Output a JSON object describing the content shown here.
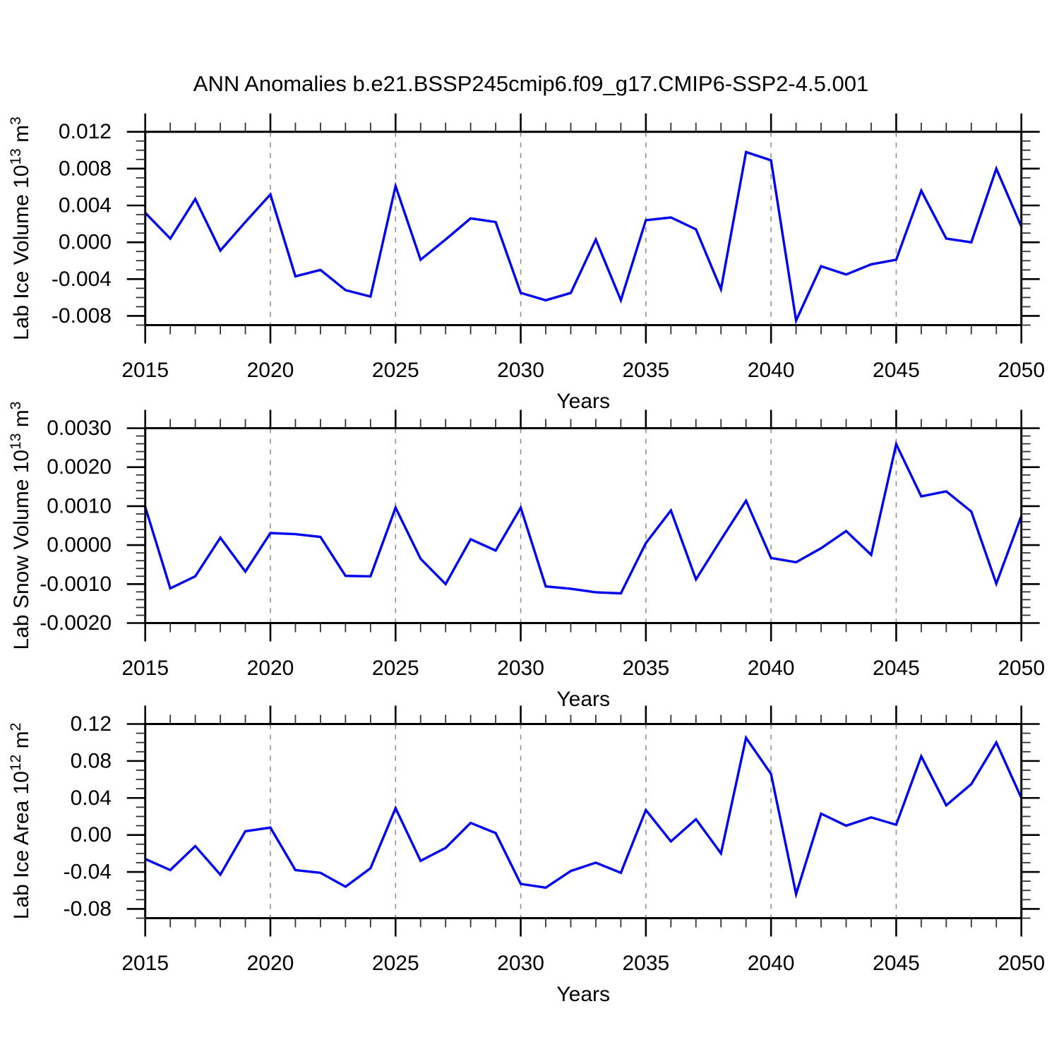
{
  "title": "ANN Anomalies b.e21.BSSP245cmip6.f09_g17.CMIP6-SSP2-4.5.001",
  "line_color": "#0000F0",
  "grid_color": "#909090",
  "axis_color": "#000000",
  "chart_data": [
    {
      "type": "line",
      "name": "lab-ice-volume",
      "ylabel_segments": [
        {
          "t": "Lab Ice Volume 10"
        },
        {
          "t": "13",
          "sup": true
        },
        {
          "t": " m"
        },
        {
          "t": "3",
          "sup": true
        }
      ],
      "xlabel": "Years",
      "x": [
        2015,
        2016,
        2017,
        2018,
        2019,
        2020,
        2021,
        2022,
        2023,
        2024,
        2025,
        2026,
        2027,
        2028,
        2029,
        2030,
        2031,
        2032,
        2033,
        2034,
        2035,
        2036,
        2037,
        2038,
        2039,
        2040,
        2041,
        2042,
        2043,
        2044,
        2045,
        2046,
        2047,
        2048,
        2049,
        2050
      ],
      "values": [
        0.0032,
        0.0004,
        0.0047,
        -0.0009,
        0.0022,
        0.0052,
        -0.0037,
        -0.003,
        -0.0052,
        -0.0059,
        0.0061,
        -0.0019,
        0.0003,
        0.0026,
        0.0022,
        -0.0055,
        -0.0063,
        -0.0055,
        0.0003,
        -0.0063,
        0.0024,
        0.0027,
        0.0014,
        -0.0051,
        0.0098,
        0.0089,
        -0.0085,
        -0.0026,
        -0.0035,
        -0.0024,
        -0.0019,
        0.0056,
        0.0004,
        0.0,
        0.008,
        0.0017
      ],
      "xlim": [
        2015,
        2050
      ],
      "ylim": [
        -0.009,
        0.012
      ],
      "xtick_major": [
        2015,
        2020,
        2025,
        2030,
        2035,
        2040,
        2045,
        2050
      ],
      "xtick_labels": [
        "2015",
        "2020",
        "2025",
        "2030",
        "2035",
        "2040",
        "2045",
        "2050"
      ],
      "xtick_minor_step": 1,
      "ytick_values": [
        0.012,
        0.008,
        0.004,
        0.0,
        -0.004,
        -0.008
      ],
      "ytick_labels": [
        "0.012",
        "0.008",
        "0.004",
        "0.000",
        "-0.004",
        "-0.008"
      ],
      "ytick_minor_step": 0.001,
      "grid_x": [
        2020,
        2025,
        2030,
        2035,
        2040,
        2045
      ],
      "grid": "vertical-dashed",
      "legend": "none"
    },
    {
      "type": "line",
      "name": "lab-snow-volume",
      "ylabel_segments": [
        {
          "t": "Lab Snow Volume 10"
        },
        {
          "t": "13",
          "sup": true
        },
        {
          "t": " m"
        },
        {
          "t": "3",
          "sup": true
        }
      ],
      "xlabel": "Years",
      "x": [
        2015,
        2016,
        2017,
        2018,
        2019,
        2020,
        2021,
        2022,
        2023,
        2024,
        2025,
        2026,
        2027,
        2028,
        2029,
        2030,
        2031,
        2032,
        2033,
        2034,
        2035,
        2036,
        2037,
        2038,
        2039,
        2040,
        2041,
        2042,
        2043,
        2044,
        2045,
        2046,
        2047,
        2048,
        2049,
        2050
      ],
      "values": [
        0.00098,
        -0.00111,
        -0.0008,
        0.00019,
        -0.00068,
        0.00031,
        0.00028,
        0.00021,
        -0.00079,
        -0.0008,
        0.00096,
        -0.00035,
        -0.001,
        0.00015,
        -0.00014,
        0.00096,
        -0.00106,
        -0.00112,
        -0.00121,
        -0.00124,
        5e-05,
        0.00089,
        -0.00088,
        0.00014,
        0.00114,
        -0.00033,
        -0.00044,
        -8e-05,
        0.00036,
        -0.00025,
        0.00259,
        0.00125,
        0.00138,
        0.00086,
        -0.00099,
        0.00075
      ],
      "xlim": [
        2015,
        2050
      ],
      "ylim": [
        -0.002,
        0.003
      ],
      "xtick_major": [
        2015,
        2020,
        2025,
        2030,
        2035,
        2040,
        2045,
        2050
      ],
      "xtick_labels": [
        "2015",
        "2020",
        "2025",
        "2030",
        "2035",
        "2040",
        "2045",
        "2050"
      ],
      "xtick_minor_step": 1,
      "ytick_values": [
        0.003,
        0.002,
        0.001,
        0.0,
        -0.001,
        -0.002
      ],
      "ytick_labels": [
        "0.0030",
        "0.0020",
        "0.0010",
        "0.0000",
        "-0.0010",
        "-0.0020"
      ],
      "ytick_minor_step": 0.0002,
      "grid_x": [
        2020,
        2025,
        2030,
        2035,
        2040,
        2045
      ],
      "grid": "vertical-dashed",
      "legend": "none"
    },
    {
      "type": "line",
      "name": "lab-ice-area",
      "ylabel_segments": [
        {
          "t": "Lab Ice Area 10"
        },
        {
          "t": "12",
          "sup": true
        },
        {
          "t": " m"
        },
        {
          "t": "2",
          "sup": true
        }
      ],
      "xlabel": "Years",
      "x": [
        2015,
        2016,
        2017,
        2018,
        2019,
        2020,
        2021,
        2022,
        2023,
        2024,
        2025,
        2026,
        2027,
        2028,
        2029,
        2030,
        2031,
        2032,
        2033,
        2034,
        2035,
        2036,
        2037,
        2038,
        2039,
        2040,
        2041,
        2042,
        2043,
        2044,
        2045,
        2046,
        2047,
        2048,
        2049,
        2050
      ],
      "values": [
        -0.026,
        -0.038,
        -0.012,
        -0.043,
        0.004,
        0.008,
        -0.038,
        -0.041,
        -0.056,
        -0.036,
        0.029,
        -0.028,
        -0.014,
        0.013,
        0.002,
        -0.053,
        -0.057,
        -0.039,
        -0.03,
        -0.041,
        0.027,
        -0.007,
        0.017,
        -0.02,
        0.105,
        0.066,
        -0.064,
        0.023,
        0.01,
        0.019,
        0.011,
        0.085,
        0.032,
        0.055,
        0.1,
        0.04
      ],
      "xlim": [
        2015,
        2050
      ],
      "ylim": [
        -0.09,
        0.12
      ],
      "xtick_major": [
        2015,
        2020,
        2025,
        2030,
        2035,
        2040,
        2045,
        2050
      ],
      "xtick_labels": [
        "2015",
        "2020",
        "2025",
        "2030",
        "2035",
        "2040",
        "2045",
        "2050"
      ],
      "xtick_minor_step": 1,
      "ytick_values": [
        0.12,
        0.08,
        0.04,
        0.0,
        -0.04,
        -0.08
      ],
      "ytick_labels": [
        "0.12",
        "0.08",
        "0.04",
        "0.00",
        "-0.04",
        "-0.08"
      ],
      "ytick_minor_step": 0.01,
      "grid_x": [
        2020,
        2025,
        2030,
        2035,
        2040,
        2045
      ],
      "grid": "vertical-dashed",
      "legend": "none"
    }
  ]
}
